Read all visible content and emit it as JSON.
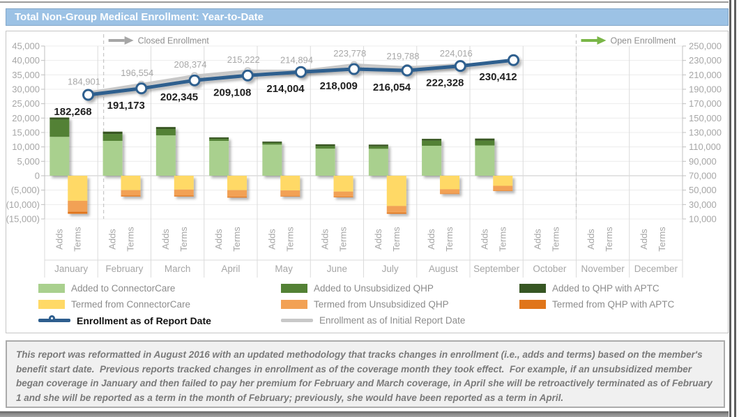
{
  "header": {
    "title": "Total Non-Group Medical Enrollment: Year-to-Date"
  },
  "chart_data": {
    "type": "combo stacked-bar + line",
    "months": [
      "January",
      "February",
      "March",
      "April",
      "May",
      "June",
      "July",
      "August",
      "September",
      "October",
      "November",
      "December"
    ],
    "category_sublabels": [
      "Adds",
      "Terms"
    ],
    "left_axis": {
      "max": 45000,
      "step": 5000,
      "min": -15000,
      "ticks": [
        "45,000",
        "40,000",
        "35,000",
        "30,000",
        "25,000",
        "20,000",
        "15,000",
        "10,000",
        "5,000",
        "0",
        "(5,000)",
        "(10,000)",
        "(15,000)"
      ]
    },
    "right_axis": {
      "max": 250000,
      "step": 20000,
      "min": 10000,
      "ticks": [
        "250,000",
        "230,000",
        "210,000",
        "190,000",
        "170,000",
        "150,000",
        "130,000",
        "110,000",
        "90,000",
        "70,000",
        "50,000",
        "30,000",
        "10,000"
      ]
    },
    "adds_series": [
      {
        "name": "Added to ConnectorCare",
        "color": "#A9D08E",
        "values": [
          13500,
          12100,
          14000,
          12100,
          10800,
          9400,
          9350,
          10400,
          10500,
          0,
          0,
          0
        ]
      },
      {
        "name": "Added to Unsubsidized QHP",
        "color": "#538135",
        "values": [
          6000,
          2400,
          2200,
          700,
          600,
          900,
          850,
          1800,
          1700,
          0,
          0,
          0
        ]
      },
      {
        "name": "Added to QHP with APTC",
        "color": "#375623",
        "values": [
          700,
          800,
          700,
          500,
          450,
          600,
          600,
          600,
          700,
          0,
          0,
          0
        ]
      }
    ],
    "terms_series": [
      {
        "name": "Termed from ConnectorCare",
        "color": "#FFD966",
        "values": [
          -8700,
          -5000,
          -4800,
          -5000,
          -5100,
          -5500,
          -10500,
          -4700,
          -3500,
          0,
          0,
          0
        ]
      },
      {
        "name": "Termed from Unsubsidized QHP",
        "color": "#F2A154",
        "values": [
          -3800,
          -1900,
          -2100,
          -2300,
          -1900,
          -1800,
          -2300,
          -1500,
          -1700,
          0,
          0,
          0
        ]
      },
      {
        "name": "Termed from QHP with APTC",
        "color": "#E0751A",
        "values": [
          -700,
          -300,
          -300,
          -300,
          -200,
          -200,
          -400,
          -150,
          -100,
          0,
          0,
          0
        ]
      }
    ],
    "line_series": [
      {
        "key": "initial",
        "name": "Enrollment as of Initial Report Date",
        "color": "#C8C8C8",
        "label_color": "#A8A8A8",
        "values": [
          184901,
          196554,
          208374,
          215222,
          214894,
          223778,
          219788,
          224016,
          null,
          null,
          null,
          null
        ]
      },
      {
        "key": "report",
        "name": "Enrollment as of Report Date",
        "color": "#2E5E8E",
        "label_color": "#1F1F1F",
        "values": [
          182268,
          191173,
          202345,
          209108,
          214004,
          218009,
          216054,
          222328,
          230412,
          null,
          null,
          null
        ]
      }
    ],
    "annotations": [
      {
        "key": "closed-enrollment",
        "label": "Closed Enrollment",
        "month_position": 1.11,
        "arrow_color": "#A6A6A6"
      },
      {
        "key": "open-enrollment",
        "label": "Open Enrollment",
        "month_position": 10.0,
        "arrow_color": "#7AB648"
      }
    ]
  },
  "legend": {
    "col1": [
      {
        "label": "Added to ConnectorCare"
      },
      {
        "label": "Termed from ConnectorCare"
      },
      {
        "label": "Enrollment as of Report Date"
      }
    ],
    "col2": [
      {
        "label": "Added to Unsubsidized QHP"
      },
      {
        "label": "Termed from Unsubsidized QHP"
      },
      {
        "label": "Enrollment as of Initial Report Date"
      }
    ],
    "col3": [
      {
        "label": "Added to QHP with APTC"
      },
      {
        "label": "Termed from QHP with APTC"
      }
    ]
  },
  "footer": {
    "text": "This report was reformatted in August 2016 with an updated methodology that tracks changes in enrollment (i.e., adds and terms) based on the member's benefit start date.  Previous reports tracked changes in enrollment as of the coverage month they took effect.  For example, if an unsubsidized member began coverage in January and then failed to pay her premium for February and March coverage, in April she will be retroactively terminated as of February 1 and she will be reported as a term in the month of February; previously, she would have been reported as a term in April."
  }
}
